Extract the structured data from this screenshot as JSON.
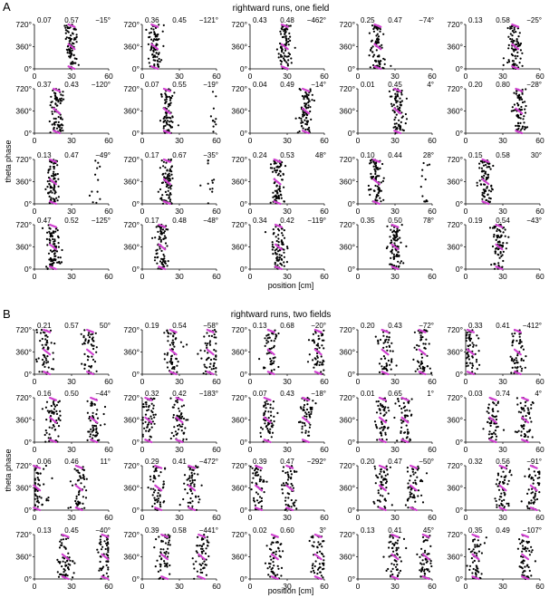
{
  "figure": {
    "panel_a_label": "A",
    "panel_b_label": "B",
    "panel_a_title": "rightward runs, one field",
    "panel_b_title": "rightward runs, two fields",
    "ylabel": "theta phase",
    "xlabel": "position [cm]"
  },
  "colors": {
    "spikes": "#000000",
    "fit": "#d040d0",
    "axis": "#000000"
  },
  "chart_data": [
    {
      "type": "scatter",
      "panel": "A",
      "title": "rightward runs, one field",
      "xlabel": "position [cm]",
      "ylabel": "theta phase",
      "xlim": [
        0,
        60
      ],
      "ylim": [
        0,
        720
      ],
      "xticks": [
        "0",
        "30",
        "60"
      ],
      "yticks": [
        "0°",
        "360°",
        "720°"
      ],
      "subplots": [
        {
          "left": "0.07",
          "mid": "0.57",
          "right": "−15°",
          "fields": [
            30
          ]
        },
        {
          "left": "0.36",
          "mid": "0.45",
          "right": "−121°",
          "fields": [
            10
          ]
        },
        {
          "left": "0.43",
          "mid": "0.48",
          "right": "−462°",
          "fields": [
            28
          ]
        },
        {
          "left": "0.25",
          "mid": "0.47",
          "right": "−74°",
          "fields": [
            16
          ]
        },
        {
          "left": "0.13",
          "mid": "0.58",
          "right": "−25°",
          "fields": [
            40
          ]
        },
        {
          "left": "0.37",
          "mid": "0.43",
          "right": "−120°",
          "fields": [
            18
          ]
        },
        {
          "left": "0.07",
          "mid": "0.55",
          "right": "−19°",
          "fields": [
            20,
            58
          ]
        },
        {
          "left": "0.04",
          "mid": "0.49",
          "right": "−14°",
          "fields": [
            45
          ]
        },
        {
          "left": "0.01",
          "mid": "0.45",
          "right": "4°",
          "fields": [
            32
          ]
        },
        {
          "left": "0.20",
          "mid": "0.80",
          "right": "−28°",
          "fields": [
            43
          ]
        },
        {
          "left": "0.13",
          "mid": "0.47",
          "right": "−49°",
          "fields": [
            15,
            48
          ]
        },
        {
          "left": "0.17",
          "mid": "0.67",
          "right": "−35°",
          "fields": [
            20,
            55
          ]
        },
        {
          "left": "0.24",
          "mid": "0.53",
          "right": "48°",
          "fields": [
            22
          ]
        },
        {
          "left": "0.10",
          "mid": "0.44",
          "right": "28°",
          "fields": [
            15,
            53
          ]
        },
        {
          "left": "0.15",
          "mid": "0.58",
          "right": "30°",
          "fields": [
            16
          ]
        },
        {
          "left": "0.47",
          "mid": "0.52",
          "right": "−125°",
          "fields": [
            15
          ]
        },
        {
          "left": "0.17",
          "mid": "0.48",
          "right": "−48°",
          "fields": [
            16
          ]
        },
        {
          "left": "0.34",
          "mid": "0.42",
          "right": "−119°",
          "fields": [
            23
          ]
        },
        {
          "left": "0.35",
          "mid": "0.50",
          "right": "78°",
          "fields": [
            30
          ]
        },
        {
          "left": "0.19",
          "mid": "0.54",
          "right": "−43°",
          "fields": [
            27
          ]
        }
      ]
    },
    {
      "type": "scatter",
      "panel": "B",
      "title": "rightward runs, two fields",
      "xlabel": "position [cm]",
      "ylabel": "theta phase",
      "xlim": [
        0,
        60
      ],
      "ylim": [
        0,
        720
      ],
      "xticks": [
        "0",
        "30",
        "60"
      ],
      "yticks": [
        "0°",
        "360°",
        "720°"
      ],
      "subplots": [
        {
          "left": "0.21",
          "mid": "0.57",
          "right": "50°",
          "fields": [
            10,
            45
          ]
        },
        {
          "left": "0.19",
          "mid": "0.54",
          "right": "−58°",
          "fields": [
            25,
            55
          ]
        },
        {
          "left": "0.13",
          "mid": "0.68",
          "right": "−20°",
          "fields": [
            17,
            55
          ]
        },
        {
          "left": "0.20",
          "mid": "0.43",
          "right": "−72°",
          "fields": [
            22,
            52
          ]
        },
        {
          "left": "0.33",
          "mid": "0.41",
          "right": "−412°",
          "fields": [
            4,
            42
          ]
        },
        {
          "left": "0.16",
          "mid": "0.50",
          "right": "−44°",
          "fields": [
            15,
            48
          ]
        },
        {
          "left": "0.32",
          "mid": "0.42",
          "right": "−183°",
          "fields": [
            5,
            30
          ]
        },
        {
          "left": "0.07",
          "mid": "0.43",
          "right": "−18°",
          "fields": [
            14,
            45
          ]
        },
        {
          "left": "0.01",
          "mid": "0.65",
          "right": "1°",
          "fields": [
            20,
            38
          ]
        },
        {
          "left": "0.03",
          "mid": "0.74",
          "right": "4°",
          "fields": [
            22,
            48
          ]
        },
        {
          "left": "0.06",
          "mid": "0.46",
          "right": "11°",
          "fields": [
            2,
            36
          ]
        },
        {
          "left": "0.29",
          "mid": "0.41",
          "right": "−472°",
          "fields": [
            13,
            40
          ]
        },
        {
          "left": "0.39",
          "mid": "0.47",
          "right": "−292°",
          "fields": [
            7,
            32
          ]
        },
        {
          "left": "0.20",
          "mid": "0.47",
          "right": "−50°",
          "fields": [
            20,
            45
          ]
        },
        {
          "left": "0.32",
          "mid": "0.56",
          "right": "−91°",
          "fields": [
            30,
            55
          ]
        },
        {
          "left": "0.13",
          "mid": "0.45",
          "right": "−40°",
          "fields": [
            25,
            57
          ]
        },
        {
          "left": "0.39",
          "mid": "0.58",
          "right": "−441°",
          "fields": [
            18,
            48
          ]
        },
        {
          "left": "0.02",
          "mid": "0.60",
          "right": "3°",
          "fields": [
            20,
            55
          ]
        },
        {
          "left": "0.13",
          "mid": "0.41",
          "right": "45°",
          "fields": [
            30,
            55
          ]
        },
        {
          "left": "0.35",
          "mid": "0.49",
          "right": "−107°",
          "fields": [
            8,
            48
          ]
        }
      ]
    }
  ]
}
